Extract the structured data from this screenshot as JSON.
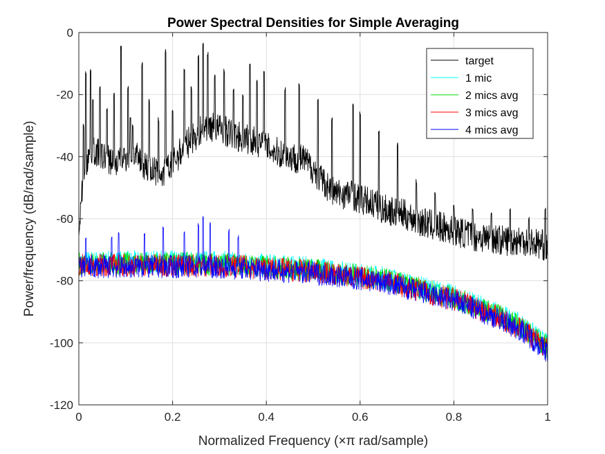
{
  "chart_data": {
    "type": "line",
    "title": "Power Spectral Densities for Simple Averaging",
    "xlabel": "Normalized Frequency  (×π rad/sample)",
    "ylabel": "Power/frequency (dB/rad/sample)",
    "xlim": [
      0,
      1
    ],
    "ylim": [
      -120,
      0
    ],
    "xticks": [
      0,
      0.2,
      0.4,
      0.6,
      0.8,
      1
    ],
    "xtick_labels": [
      "0",
      "0.2",
      "0.4",
      "0.6",
      "0.8",
      "1"
    ],
    "yticks": [
      -120,
      -100,
      -80,
      -60,
      -40,
      -20,
      0
    ],
    "ytick_labels": [
      "-120",
      "-100",
      "-80",
      "-60",
      "-40",
      "-20",
      "0"
    ],
    "grid": true,
    "legend_position": "top-right",
    "series": [
      {
        "name": "target",
        "color": "#000000",
        "x": [
          0,
          0.005,
          0.01,
          0.02,
          0.03,
          0.05,
          0.08,
          0.1,
          0.12,
          0.15,
          0.18,
          0.2,
          0.23,
          0.25,
          0.27,
          0.3,
          0.33,
          0.35,
          0.38,
          0.4,
          0.43,
          0.45,
          0.48,
          0.5,
          0.52,
          0.55,
          0.58,
          0.6,
          0.63,
          0.65,
          0.68,
          0.7,
          0.73,
          0.75,
          0.78,
          0.8,
          0.83,
          0.85,
          0.88,
          0.9,
          0.93,
          0.95,
          0.98,
          1
        ],
        "values": [
          -68,
          -55,
          -45,
          -40,
          -38,
          -40,
          -42,
          -40,
          -40,
          -44,
          -46,
          -42,
          -36,
          -33,
          -30,
          -31,
          -33,
          -34,
          -35,
          -37,
          -39,
          -40,
          -41,
          -44,
          -48,
          -52,
          -52,
          -54,
          -55,
          -57,
          -58,
          -59,
          -61,
          -62,
          -63,
          -64,
          -65,
          -66,
          -66,
          -67,
          -67,
          -67,
          -68,
          -69
        ],
        "peaks": [
          {
            "x": 0.01,
            "value": -30
          },
          {
            "x": 0.015,
            "value": -13
          },
          {
            "x": 0.025,
            "value": -12
          },
          {
            "x": 0.03,
            "value": -22
          },
          {
            "x": 0.045,
            "value": -18
          },
          {
            "x": 0.06,
            "value": -25
          },
          {
            "x": 0.075,
            "value": -20
          },
          {
            "x": 0.09,
            "value": -5
          },
          {
            "x": 0.105,
            "value": -18
          },
          {
            "x": 0.11,
            "value": -27
          },
          {
            "x": 0.115,
            "value": -30
          },
          {
            "x": 0.135,
            "value": -10
          },
          {
            "x": 0.15,
            "value": -22
          },
          {
            "x": 0.17,
            "value": -28
          },
          {
            "x": 0.185,
            "value": -6
          },
          {
            "x": 0.2,
            "value": -25
          },
          {
            "x": 0.225,
            "value": -12
          },
          {
            "x": 0.24,
            "value": -18
          },
          {
            "x": 0.255,
            "value": -8
          },
          {
            "x": 0.265,
            "value": -4
          },
          {
            "x": 0.275,
            "value": -7
          },
          {
            "x": 0.29,
            "value": -14
          },
          {
            "x": 0.31,
            "value": -12
          },
          {
            "x": 0.33,
            "value": -18
          },
          {
            "x": 0.35,
            "value": -20
          },
          {
            "x": 0.365,
            "value": -10
          },
          {
            "x": 0.38,
            "value": -16
          },
          {
            "x": 0.395,
            "value": -12
          },
          {
            "x": 0.44,
            "value": -18
          },
          {
            "x": 0.47,
            "value": -17
          },
          {
            "x": 0.51,
            "value": -22
          },
          {
            "x": 0.54,
            "value": -28
          },
          {
            "x": 0.585,
            "value": -23
          },
          {
            "x": 0.6,
            "value": -26
          },
          {
            "x": 0.64,
            "value": -32
          },
          {
            "x": 0.68,
            "value": -36
          },
          {
            "x": 0.72,
            "value": -48
          },
          {
            "x": 0.76,
            "value": -52
          },
          {
            "x": 0.8,
            "value": -56
          },
          {
            "x": 0.84,
            "value": -57
          },
          {
            "x": 0.88,
            "value": -58
          },
          {
            "x": 0.92,
            "value": -57
          },
          {
            "x": 0.96,
            "value": -60
          },
          {
            "x": 0.995,
            "value": -57
          }
        ]
      },
      {
        "name": "1 mic",
        "color": "#00ffff",
        "x": [
          0,
          0.05,
          0.1,
          0.15,
          0.2,
          0.25,
          0.3,
          0.35,
          0.4,
          0.45,
          0.5,
          0.55,
          0.6,
          0.65,
          0.7,
          0.75,
          0.8,
          0.85,
          0.9,
          0.95,
          1
        ],
        "values": [
          -74,
          -74,
          -74,
          -74,
          -74,
          -74,
          -74,
          -74.5,
          -75,
          -75.5,
          -76,
          -77,
          -78,
          -79,
          -81,
          -83,
          -85,
          -88,
          -91,
          -95,
          -101
        ]
      },
      {
        "name": "2 mics avg",
        "color": "#00dd00",
        "x": [
          0,
          0.05,
          0.1,
          0.15,
          0.2,
          0.25,
          0.3,
          0.35,
          0.4,
          0.45,
          0.5,
          0.55,
          0.6,
          0.65,
          0.7,
          0.75,
          0.8,
          0.85,
          0.9,
          0.95,
          1
        ],
        "values": [
          -74.5,
          -74.5,
          -74.5,
          -74.5,
          -74.5,
          -74.5,
          -74.5,
          -75,
          -75.5,
          -76,
          -76.5,
          -77.5,
          -78.5,
          -79.5,
          -81.5,
          -83.5,
          -85.5,
          -88.5,
          -91.5,
          -95.5,
          -101.5
        ]
      },
      {
        "name": "3 mics avg",
        "color": "#ff0000",
        "x": [
          0,
          0.05,
          0.1,
          0.15,
          0.2,
          0.25,
          0.3,
          0.35,
          0.4,
          0.45,
          0.5,
          0.55,
          0.6,
          0.65,
          0.7,
          0.75,
          0.8,
          0.85,
          0.9,
          0.95,
          1
        ],
        "values": [
          -75,
          -75,
          -75,
          -75,
          -75,
          -75,
          -75,
          -75.5,
          -76,
          -76.5,
          -77,
          -78,
          -79,
          -80,
          -82,
          -84,
          -86,
          -89,
          -92,
          -96,
          -102
        ]
      },
      {
        "name": "4 mics avg",
        "color": "#0000ff",
        "x": [
          0,
          0.05,
          0.1,
          0.15,
          0.2,
          0.25,
          0.3,
          0.35,
          0.4,
          0.45,
          0.5,
          0.55,
          0.6,
          0.65,
          0.7,
          0.75,
          0.8,
          0.85,
          0.9,
          0.95,
          1
        ],
        "values": [
          -75.5,
          -75.5,
          -75.5,
          -75.5,
          -75.5,
          -75.5,
          -75.5,
          -76,
          -76.5,
          -77,
          -77.5,
          -78.5,
          -79.5,
          -80.5,
          -82.5,
          -84.5,
          -86.5,
          -89.5,
          -92.5,
          -96.5,
          -103
        ],
        "peaks": [
          {
            "x": 0.015,
            "value": -66
          },
          {
            "x": 0.07,
            "value": -66
          },
          {
            "x": 0.085,
            "value": -65
          },
          {
            "x": 0.14,
            "value": -65
          },
          {
            "x": 0.18,
            "value": -63
          },
          {
            "x": 0.225,
            "value": -64
          },
          {
            "x": 0.255,
            "value": -62
          },
          {
            "x": 0.265,
            "value": -60
          },
          {
            "x": 0.28,
            "value": -62
          },
          {
            "x": 0.32,
            "value": -64
          },
          {
            "x": 0.34,
            "value": -66
          }
        ]
      }
    ]
  }
}
